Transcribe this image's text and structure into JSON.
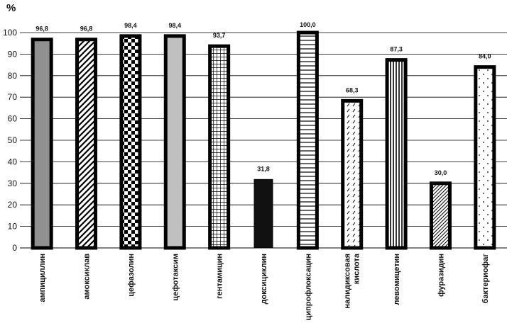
{
  "chart_data": {
    "type": "bar",
    "unit_label": "%",
    "categories": [
      "ампициллин",
      "амоксиклав",
      "цефазолин",
      "цефотаксим",
      "гентамицин",
      "доксициклин",
      "ципрофлоксацин",
      "налидиксовая кислота",
      "левомицетин",
      "фуразидин",
      "бактериофаг"
    ],
    "values": [
      96.8,
      96.8,
      98.4,
      98.4,
      93.7,
      31.8,
      100.0,
      68.3,
      87.3,
      30.0,
      84.0
    ],
    "data_labels": [
      "96,8",
      "96,8",
      "98,4",
      "98,4",
      "93,7",
      "31,8",
      "100,0",
      "68,3",
      "87,3",
      "30,0",
      "84,0"
    ],
    "yticks": [
      "0",
      "10",
      "20",
      "30",
      "40",
      "50",
      "60",
      "70",
      "80",
      "90",
      "100"
    ],
    "ylim": [
      0,
      100
    ],
    "grid": true,
    "legend": "none",
    "patterns": [
      "solid-gray",
      "diagonal",
      "checker",
      "solid-lightgray",
      "grid",
      "solid-black",
      "horizontal",
      "dashed-diagonal",
      "vertical",
      "diagonal-fine",
      "dots"
    ],
    "colors": {
      "bar_border": "#000000",
      "gray": "#909090",
      "lightgray": "#c0c0c0",
      "black": "#111111"
    }
  }
}
